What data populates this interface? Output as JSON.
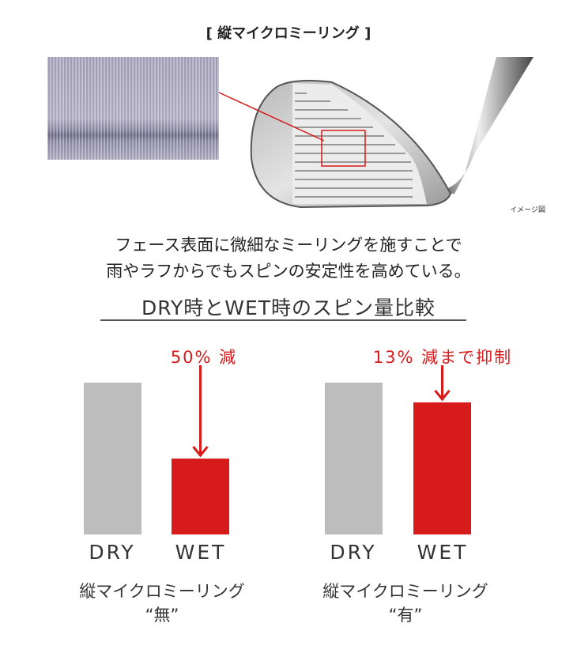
{
  "title": "[ 縦マイクロミーリング ]",
  "image_note": "イメージ図",
  "description_lines": [
    "フェース表面に微細なミーリングを施すことで",
    "雨やラフからでもスピンの安定性を高めている。"
  ],
  "heading": "DRY時とWET時のスピン量比較",
  "colors": {
    "dry": "#bdbdbd",
    "wet": "#d71b1b",
    "accent": "#d71b1b"
  },
  "chart_data": [
    {
      "type": "bar",
      "categories": [
        "DRY",
        "WET"
      ],
      "values": [
        100,
        50
      ],
      "annotation": "50% 減",
      "caption_line1": "縦マイクロミーリング",
      "caption_line2": "“無”"
    },
    {
      "type": "bar",
      "categories": [
        "DRY",
        "WET"
      ],
      "values": [
        100,
        87
      ],
      "annotation": "13% 減まで抑制",
      "caption_line1": "縦マイクロミーリング",
      "caption_line2": "“有”"
    }
  ]
}
